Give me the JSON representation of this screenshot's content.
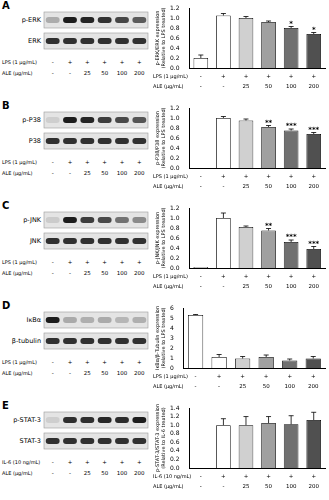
{
  "panels": [
    {
      "letter": "A",
      "bands": [
        "p-ERK",
        "ERK"
      ],
      "treatments": [
        {
          "label": "LPS (1 μg/mL)",
          "lanes": [
            "-",
            "+",
            "+",
            "+",
            "+",
            "+"
          ]
        },
        {
          "label": "ALE (μg/mL)",
          "lanes": [
            "-",
            "-",
            "25",
            "50",
            "100",
            "200"
          ]
        }
      ]
    },
    {
      "letter": "B",
      "bands": [
        "p-P38",
        "P38"
      ],
      "treatments": [
        {
          "label": "LPS (1 μg/mL)",
          "lanes": [
            "-",
            "+",
            "+",
            "+",
            "+",
            "+"
          ]
        },
        {
          "label": "ALE (μg/mL)",
          "lanes": [
            "-",
            "-",
            "25",
            "50",
            "100",
            "200"
          ]
        }
      ]
    },
    {
      "letter": "C",
      "bands": [
        "p-JNK",
        "JNK"
      ],
      "treatments": [
        {
          "label": "LPS (1 μg/mL)",
          "lanes": [
            "-",
            "+",
            "+",
            "+",
            "+",
            "+"
          ]
        },
        {
          "label": "ALE (μg/mL)",
          "lanes": [
            "-",
            "-",
            "25",
            "50",
            "100",
            "200"
          ]
        }
      ]
    },
    {
      "letter": "D",
      "bands": [
        "IκBα",
        "β-tubulin"
      ],
      "treatments": [
        {
          "label": "LPS (1 μg/mL)",
          "lanes": [
            "-",
            "+",
            "+",
            "+",
            "+",
            "+"
          ]
        },
        {
          "label": "ALE (μg/mL)",
          "lanes": [
            "-",
            "-",
            "25",
            "50",
            "100",
            "200"
          ]
        }
      ]
    },
    {
      "letter": "E",
      "bands": [
        "p-STAT-3",
        "STAT-3"
      ],
      "treatments": [
        {
          "label": "IL-6 (10 ng/mL)",
          "lanes": [
            "-",
            "+",
            "+",
            "+",
            "+",
            "+"
          ]
        },
        {
          "label": "ALE (μg/mL)",
          "lanes": [
            "-",
            "-",
            "25",
            "50",
            "100",
            "200"
          ]
        }
      ]
    }
  ],
  "chart_data": [
    {
      "type": "bar",
      "y_label": "p-ERK/ERK expression (Relative to LPS treated)",
      "categories": [
        null,
        null,
        null,
        null,
        null,
        null
      ],
      "values": [
        0.2,
        1.05,
        1.0,
        0.92,
        0.8,
        0.68
      ],
      "errors": [
        0.06,
        0.04,
        0.03,
        0.02,
        0.03,
        0.03
      ],
      "annotations": [
        null,
        null,
        null,
        null,
        "*",
        "*"
      ],
      "colors": [
        "#ffffff",
        "#ffffff",
        "#d0d0d0",
        "#a0a0a0",
        "#707070",
        "#505050"
      ],
      "ylim": [
        0,
        1.2
      ],
      "yticks": [
        {
          "value": 0,
          "label": "0.0"
        },
        0.2,
        0.4,
        0.6,
        0.8,
        {
          "value": 1,
          "label": "1.0"
        },
        1.2
      ],
      "tick_labels": "y",
      "grid": false
    },
    {
      "type": "bar",
      "y_label": "p-P38/P38 expression (Relative to LPS treated)",
      "categories": [
        null,
        null,
        null,
        null,
        null,
        null
      ],
      "values": [
        0,
        1.0,
        0.95,
        0.82,
        0.75,
        0.68
      ],
      "errors": [
        0,
        0.03,
        0.03,
        0.03,
        0.03,
        0.03
      ],
      "annotations": [
        null,
        null,
        null,
        "**",
        "***",
        "***"
      ],
      "colors": [
        "#ffffff",
        "#ffffff",
        "#d0d0d0",
        "#a0a0a0",
        "#707070",
        "#505050"
      ],
      "ylim": [
        0,
        1.2
      ],
      "yticks": [
        {
          "value": 0,
          "label": "0.0"
        },
        0.2,
        0.4,
        0.6,
        0.8,
        {
          "value": 1,
          "label": "1.0"
        },
        1.2
      ],
      "tick_labels": "y",
      "grid": false
    },
    {
      "type": "bar",
      "y_label": "p-JNK/JNK expression (Relative to LPS treated)",
      "categories": [
        null,
        null,
        null,
        null,
        null,
        null
      ],
      "values": [
        0.02,
        1.0,
        0.82,
        0.75,
        0.52,
        0.38
      ],
      "errors": [
        0,
        0.1,
        0.02,
        0.04,
        0.04,
        0.05
      ],
      "annotations": [
        null,
        null,
        null,
        "**",
        "***",
        "***"
      ],
      "colors": [
        "#ffffff",
        "#ffffff",
        "#d0d0d0",
        "#a0a0a0",
        "#707070",
        "#505050"
      ],
      "ylim": [
        0,
        1.2
      ],
      "yticks": [
        {
          "value": 0,
          "label": "0.0"
        },
        0.2,
        0.4,
        0.6,
        0.8,
        {
          "value": 1,
          "label": "1.0"
        },
        1.2
      ],
      "tick_labels": "y",
      "grid": false
    },
    {
      "type": "bar",
      "y_label": "IκBα/β-Tubulin expression (Relative to LPS treated)",
      "categories": [
        null,
        null,
        null,
        null,
        null,
        null
      ],
      "values": [
        5.3,
        1.1,
        0.95,
        1.1,
        0.75,
        0.95
      ],
      "errors": [
        0.05,
        0.25,
        0.2,
        0.2,
        0.15,
        0.2
      ],
      "annotations": [
        null,
        null,
        null,
        null,
        null,
        null
      ],
      "colors": [
        "#ffffff",
        "#ffffff",
        "#d0d0d0",
        "#a0a0a0",
        "#707070",
        "#505050"
      ],
      "ylim": [
        0,
        6
      ],
      "yticks": [
        0,
        1,
        2,
        3,
        4,
        5,
        6
      ],
      "tick_labels": "y",
      "grid": false
    },
    {
      "type": "bar",
      "y_label": "p-STAT-3/STAT-3 expression (Relative to IL-6 treated)",
      "categories": [
        null,
        null,
        null,
        null,
        null,
        null
      ],
      "values": [
        0,
        1.0,
        1.0,
        1.05,
        1.02,
        1.12
      ],
      "errors": [
        0,
        0.15,
        0.2,
        0.15,
        0.2,
        0.18
      ],
      "annotations": [
        null,
        null,
        null,
        null,
        null,
        null
      ],
      "colors": [
        "#ffffff",
        "#ffffff",
        "#d0d0d0",
        "#a0a0a0",
        "#707070",
        "#505050"
      ],
      "ylim": [
        0,
        1.4
      ],
      "yticks": [
        {
          "value": 0,
          "label": "0.0"
        },
        0.2,
        0.4,
        0.6,
        0.8,
        {
          "value": 1,
          "label": "1.0"
        },
        1.2,
        1.4
      ],
      "tick_labels": "y",
      "grid": false
    }
  ]
}
